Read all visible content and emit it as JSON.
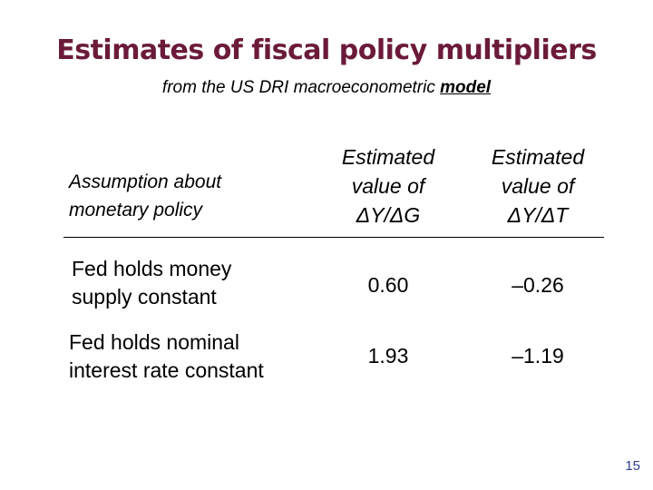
{
  "slide": {
    "title": "Estimates of fiscal policy multipliers",
    "subtitle_pre": "from the US DRI macroeconometric ",
    "subtitle_emph": "model",
    "page_number": "15"
  },
  "table": {
    "header": {
      "assumption_line1": "Assumption about",
      "assumption_line2": "monetary policy",
      "col_g_line1": "Estimated",
      "col_g_line2": "value of",
      "col_g_line3": "ΔY/ΔG",
      "col_t_line1": "Estimated",
      "col_t_line2": "value of",
      "col_t_line3": "ΔY/ΔT"
    },
    "rows": [
      {
        "label_line1": "Fed holds money",
        "label_line2": "supply constant",
        "dy_dg": "0.60",
        "dy_dt": "–0.26"
      },
      {
        "label_line1": "Fed holds nominal",
        "label_line2": "interest rate constant",
        "dy_dg": "1.93",
        "dy_dt": "–1.19"
      }
    ]
  },
  "colors": {
    "title": "#6b1a3a",
    "page_number": "#2c3e8f"
  }
}
